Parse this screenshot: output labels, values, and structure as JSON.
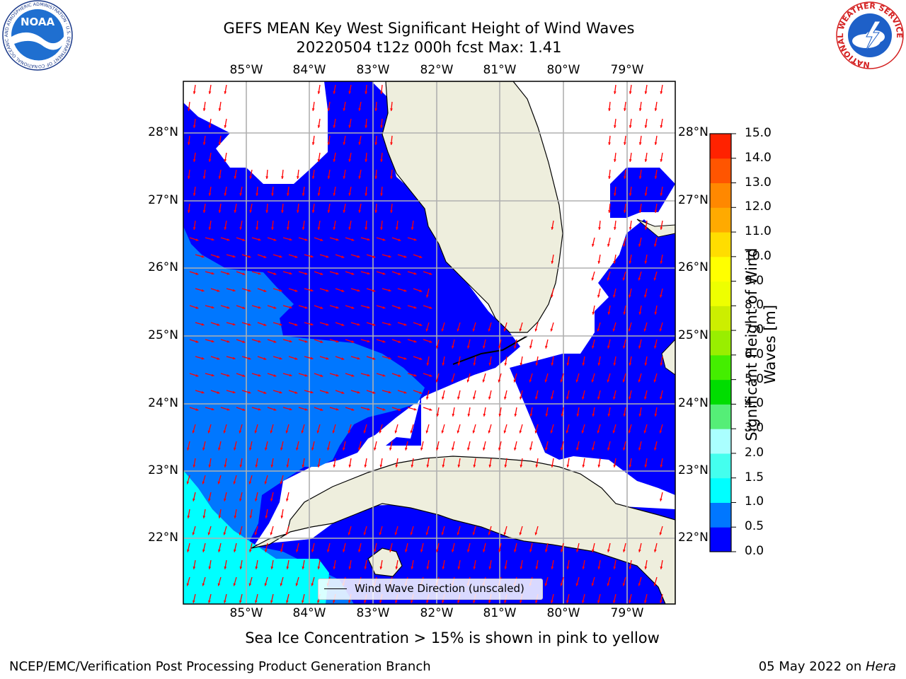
{
  "title": {
    "line1": "GEFS MEAN Key West Significant Height of Wind Waves",
    "line2": "20220504 t12z 000h fcst   Max: 1.41"
  },
  "map": {
    "lon_labels": [
      "85°W",
      "84°W",
      "83°W",
      "82°W",
      "81°W",
      "80°W",
      "79°W"
    ],
    "lat_labels": [
      "28°N",
      "27°N",
      "26°N",
      "25°N",
      "24°N",
      "23°N",
      "22°N"
    ],
    "legend_label": "Wind Wave Direction (unscaled)",
    "colors": {
      "ocean_low": "#0000ff",
      "ocean_mid": "#0077ff",
      "ocean_high": "#00ffff",
      "land": "#eeeedd",
      "arrows": "#ff0000",
      "grid": "#b0b0b0"
    }
  },
  "colorbar": {
    "label_line1": "Significant Height of Wind",
    "label_line2": "Waves [m]",
    "ticks": [
      "0.0",
      "0.5",
      "1.0",
      "1.5",
      "2.0",
      "3.0",
      "4.0",
      "5.0",
      "6.0",
      "7.0",
      "8.0",
      "9.0",
      "10.0",
      "11.0",
      "12.0",
      "13.0",
      "14.0",
      "15.0"
    ],
    "colors": [
      "#0000ff",
      "#0077ff",
      "#00ffff",
      "#44ffee",
      "#aaffff",
      "#55ee77",
      "#00dd00",
      "#44ee00",
      "#99ee00",
      "#ccee00",
      "#eeff00",
      "#ffff00",
      "#ffdd00",
      "#ffaa00",
      "#ff8800",
      "#ff5500",
      "#ff2200"
    ]
  },
  "note": "Sea Ice Concentration > 15% is shown in pink to yellow",
  "footer": {
    "left": "NCEP/EMC/Verification Post Processing Product Generation Branch",
    "date": "05 May 2022 on ",
    "machine": "Hera"
  },
  "logos": {
    "noaa_text": "NOAA",
    "noaa_ring": "NATIONAL OCEANIC AND ATMOSPHERIC ADMINISTRATION · U.S. DEPARTMENT OF COMMERCE",
    "nws_ring": "NATIONAL WEATHER SERVICE"
  }
}
